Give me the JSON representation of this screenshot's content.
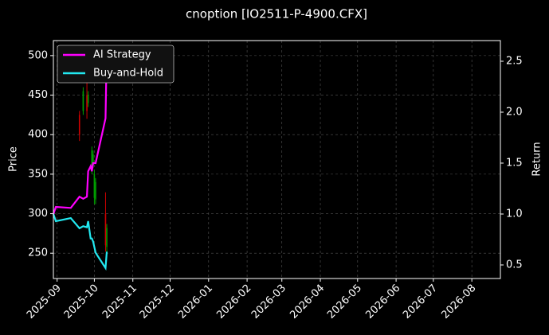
{
  "chart_data": {
    "type": "candlestick",
    "title": "cnoption [IO2511-P-4900.CFX]",
    "ylabel": "Price",
    "y2label": "Return",
    "x": [
      "2025-09-19",
      "2025-09-22",
      "2025-09-25",
      "2025-09-26",
      "2025-09-29",
      "2025-09-30",
      "2025-10-01",
      "2025-10-02",
      "2025-10-10",
      "2025-10-11"
    ],
    "open": [
      425,
      430,
      450,
      440,
      355,
      362,
      320,
      318,
      300,
      258
    ],
    "high": [
      430,
      460,
      470,
      455,
      385,
      380,
      355,
      345,
      327,
      287
    ],
    "low": [
      392,
      425,
      420,
      435,
      350,
      358,
      312,
      312,
      252,
      250
    ],
    "close": [
      400,
      455,
      430,
      450,
      380,
      375,
      350,
      340,
      260,
      282
    ],
    "up_color": "#00a000",
    "down_color": "#d00000",
    "series": [
      {
        "name": "AI Strategy",
        "color": "#ff00ff",
        "axis": "y2",
        "x": [
          "2025-08-29",
          "2025-08-31",
          "2025-09-12",
          "2025-09-19",
          "2025-09-22",
          "2025-09-25",
          "2025-09-26",
          "2025-09-28",
          "2025-09-29",
          "2025-09-30",
          "2025-10-02",
          "2025-10-10",
          "2025-10-11"
        ],
        "values": [
          1.0,
          1.07,
          1.06,
          1.17,
          1.15,
          1.17,
          1.42,
          1.47,
          1.42,
          1.5,
          1.5,
          1.94,
          2.65
        ]
      },
      {
        "name": "Buy-and-Hold",
        "color": "#22e8f0",
        "axis": "y2",
        "x": [
          "2025-08-29",
          "2025-08-31",
          "2025-09-12",
          "2025-09-19",
          "2025-09-22",
          "2025-09-25",
          "2025-09-26",
          "2025-09-28",
          "2025-09-29",
          "2025-09-30",
          "2025-10-02",
          "2025-10-10",
          "2025-10-11"
        ],
        "values": [
          1.0,
          0.93,
          0.96,
          0.86,
          0.88,
          0.87,
          0.93,
          0.76,
          0.76,
          0.73,
          0.62,
          0.47,
          0.63
        ]
      }
    ],
    "xlim": [
      "2025-08-29",
      "2026-08-24"
    ],
    "xticks": [
      {
        "value": "2025-09-01",
        "label": "2025-09"
      },
      {
        "value": "2025-10-01",
        "label": "2025-10"
      },
      {
        "value": "2025-11-01",
        "label": "2025-11"
      },
      {
        "value": "2025-12-01",
        "label": "2025-12"
      },
      {
        "value": "2026-01-01",
        "label": "2026-01"
      },
      {
        "value": "2026-02-01",
        "label": "2026-02"
      },
      {
        "value": "2026-03-01",
        "label": "2026-03"
      },
      {
        "value": "2026-04-01",
        "label": "2026-04"
      },
      {
        "value": "2026-05-01",
        "label": "2026-05"
      },
      {
        "value": "2026-06-01",
        "label": "2026-06"
      },
      {
        "value": "2026-07-01",
        "label": "2026-07"
      },
      {
        "value": "2026-08-01",
        "label": "2026-08"
      }
    ],
    "ylim": [
      218,
      519
    ],
    "yticks": [
      250,
      300,
      350,
      400,
      450,
      500
    ],
    "y2lim": [
      0.367,
      2.703
    ],
    "y2ticks": [
      0.5,
      {
        "value": 1,
        "label": "1.0"
      },
      1.5,
      {
        "value": 2,
        "label": "2.0"
      },
      2.5
    ],
    "grid": true,
    "legend": "upper left"
  }
}
